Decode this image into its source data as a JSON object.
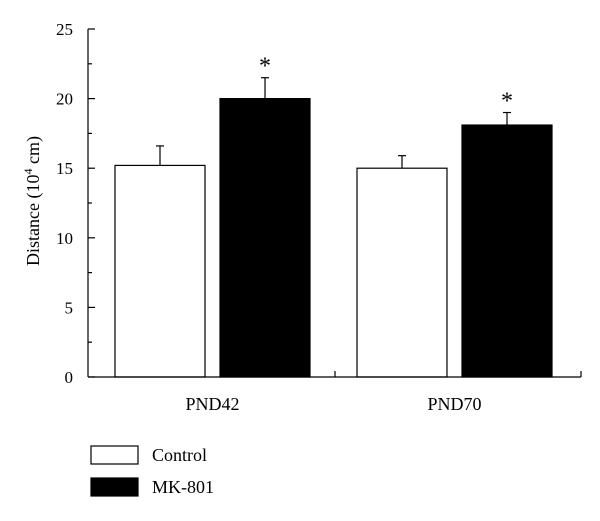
{
  "chart_data": {
    "type": "bar",
    "ylabel": "Distance (10",
    "ylabel_sup": "4",
    "ylabel_unit": " cm)",
    "ylim": [
      0,
      25
    ],
    "yticks": [
      "0",
      "5",
      "10",
      "15",
      "20",
      "25"
    ],
    "categories": [
      "PND42",
      "PND70"
    ],
    "series": [
      {
        "name": "Control",
        "color": "#ffffff",
        "values": [
          15.2,
          15.0
        ],
        "errors": [
          1.4,
          0.9
        ],
        "significance": [
          "",
          ""
        ]
      },
      {
        "name": "MK-801",
        "color": "#000000",
        "values": [
          20.0,
          18.1
        ],
        "errors": [
          1.5,
          0.9
        ],
        "significance": [
          "*",
          "*"
        ]
      }
    ],
    "legend_position": "bottom-left",
    "grid": false
  }
}
